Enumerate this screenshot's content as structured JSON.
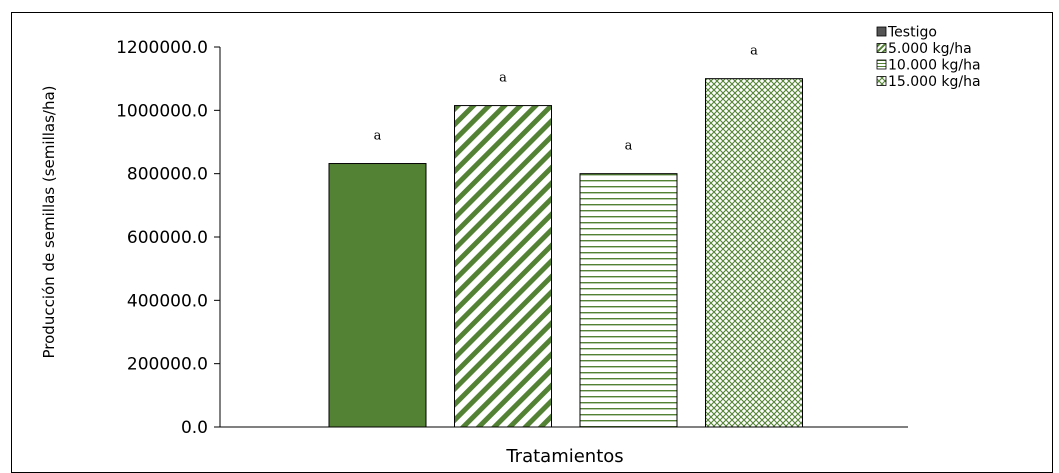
{
  "chart_data": {
    "type": "bar",
    "title": "",
    "xlabel": "Tratamientos",
    "ylabel": "Producción de semillas (semillas/ha)",
    "ylim": [
      0,
      1200000
    ],
    "yticks": [
      0,
      200000,
      400000,
      600000,
      800000,
      1000000,
      1200000
    ],
    "ytick_labels": [
      "0.0",
      "200000.0",
      "400000.0",
      "600000.0",
      "800000.0",
      "1000000.0",
      "1200000.0"
    ],
    "grid": false,
    "legend_position": "top-right",
    "series": [
      {
        "name": "Testigo",
        "value": 832000,
        "label": "a",
        "pattern": "solid"
      },
      {
        "name": "5.000 kg/ha",
        "value": 1015000,
        "label": "a",
        "pattern": "diagonal"
      },
      {
        "name": "10.000 kg/ha",
        "value": 800000,
        "label": "a",
        "pattern": "horizontal"
      },
      {
        "name": "15.000 kg/ha",
        "value": 1100000,
        "label": "a",
        "pattern": "crosshatch"
      }
    ],
    "colors": {
      "bar": "#548235",
      "outline": "#000000",
      "axis": "#000000"
    }
  }
}
